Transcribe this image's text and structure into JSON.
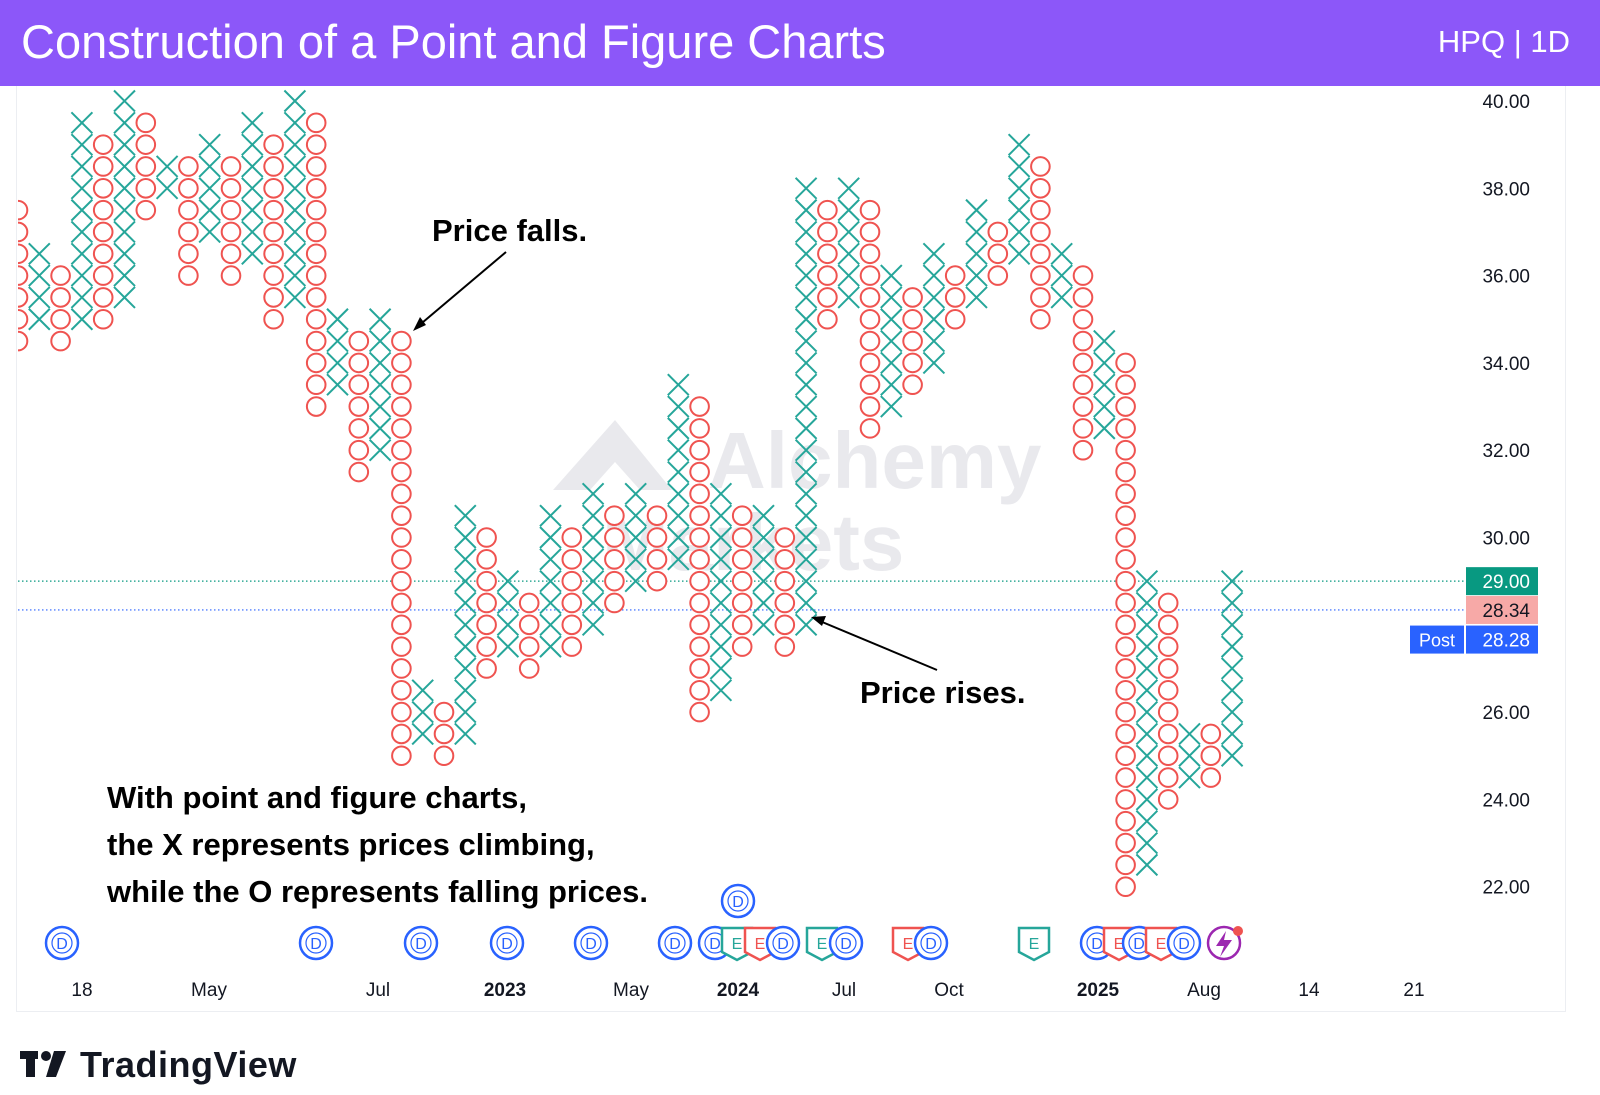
{
  "header": {
    "title": "Construction of a Point and Figure Charts",
    "ticker": "HPQ | 1D"
  },
  "colors": {
    "header_bg": "#8c57f9",
    "x_color": "#26a69a",
    "o_color": "#ef5350",
    "dividend_color": "#2962ff",
    "earnings_red": "#ef5350",
    "earnings_green": "#26a69a",
    "price_green": "#089981",
    "price_red": "#f7a9a7",
    "post_blue": "#2962ff"
  },
  "watermark": {
    "line1": "Alchemy",
    "line2": "Markets"
  },
  "annotations": {
    "price_falls": "Price falls.",
    "price_rises": "Price rises.",
    "explanation": [
      "With point and figure charts,",
      "the X represents prices climbing,",
      "while the O represents falling prices."
    ]
  },
  "price_labels": [
    {
      "value": "29.00",
      "kind": "last"
    },
    {
      "value": "28.34",
      "kind": "close"
    },
    {
      "value": "28.28",
      "kind": "post",
      "tag": "Post"
    }
  ],
  "events_row": [
    "D",
    "D",
    "D",
    "D",
    "D",
    "D",
    "D",
    "E",
    "E",
    "D",
    "E",
    "D",
    "E",
    "D",
    "E",
    "D",
    "E",
    "D",
    "E",
    "D"
  ],
  "event_top": "D",
  "logo": {
    "text": "TradingView"
  },
  "chart_data": {
    "type": "point_and_figure",
    "symbol": "HPQ",
    "interval": "1D",
    "box_size": 0.5,
    "yaxis": {
      "ticks": [
        40,
        38,
        36,
        34,
        32,
        30,
        26,
        24,
        22
      ],
      "tick_labels": [
        "40.00",
        "38.00",
        "36.00",
        "34.00",
        "32.00",
        "30.00",
        "26.00",
        "24.00",
        "22.00"
      ],
      "range": [
        21,
        40.5
      ]
    },
    "xaxis": {
      "tick_labels": [
        "18",
        "May",
        "Jul",
        "2023",
        "May",
        "2024",
        "Jul",
        "Oct",
        "2025",
        "Aug",
        "14",
        "21"
      ],
      "bold": [
        "2023",
        "2024",
        "2025"
      ]
    },
    "columns": [
      {
        "type": "O",
        "low": 34.5,
        "high": 37.5
      },
      {
        "type": "X",
        "low": 35,
        "high": 36.5
      },
      {
        "type": "O",
        "low": 34.5,
        "high": 36
      },
      {
        "type": "X",
        "low": 35,
        "high": 39.5
      },
      {
        "type": "O",
        "low": 35,
        "high": 39
      },
      {
        "type": "X",
        "low": 35.5,
        "high": 40
      },
      {
        "type": "O",
        "low": 37.5,
        "high": 39.5
      },
      {
        "type": "X",
        "low": 38,
        "high": 38.5
      },
      {
        "type": "O",
        "low": 36,
        "high": 38.5
      },
      {
        "type": "X",
        "low": 37,
        "high": 39
      },
      {
        "type": "O",
        "low": 36,
        "high": 38.5
      },
      {
        "type": "X",
        "low": 36.5,
        "high": 39.5
      },
      {
        "type": "O",
        "low": 35,
        "high": 39
      },
      {
        "type": "X",
        "low": 35.5,
        "high": 40
      },
      {
        "type": "O",
        "low": 33,
        "high": 39.5
      },
      {
        "type": "X",
        "low": 33.5,
        "high": 35
      },
      {
        "type": "O",
        "low": 31.5,
        "high": 34.5
      },
      {
        "type": "X",
        "low": 32,
        "high": 35
      },
      {
        "type": "O",
        "low": 25,
        "high": 34.5
      },
      {
        "type": "X",
        "low": 25.5,
        "high": 26.5
      },
      {
        "type": "O",
        "low": 25,
        "high": 26
      },
      {
        "type": "X",
        "low": 25.5,
        "high": 30.5
      },
      {
        "type": "O",
        "low": 27,
        "high": 30
      },
      {
        "type": "X",
        "low": 27.5,
        "high": 29
      },
      {
        "type": "O",
        "low": 27,
        "high": 28.5
      },
      {
        "type": "X",
        "low": 27.5,
        "high": 30.5
      },
      {
        "type": "O",
        "low": 27.5,
        "high": 30
      },
      {
        "type": "X",
        "low": 28,
        "high": 31
      },
      {
        "type": "O",
        "low": 28.5,
        "high": 30.5
      },
      {
        "type": "X",
        "low": 29,
        "high": 31
      },
      {
        "type": "O",
        "low": 29,
        "high": 30.5
      },
      {
        "type": "X",
        "low": 29.5,
        "high": 33.5
      },
      {
        "type": "O",
        "low": 26,
        "high": 33
      },
      {
        "type": "X",
        "low": 26.5,
        "high": 31
      },
      {
        "type": "O",
        "low": 27.5,
        "high": 30.5
      },
      {
        "type": "X",
        "low": 28,
        "high": 30.5
      },
      {
        "type": "O",
        "low": 27.5,
        "high": 30
      },
      {
        "type": "X",
        "low": 28,
        "high": 38
      },
      {
        "type": "O",
        "low": 35,
        "high": 37.5
      },
      {
        "type": "X",
        "low": 35.5,
        "high": 38
      },
      {
        "type": "O",
        "low": 32.5,
        "high": 37.5
      },
      {
        "type": "X",
        "low": 33,
        "high": 36
      },
      {
        "type": "O",
        "low": 33.5,
        "high": 35.5
      },
      {
        "type": "X",
        "low": 34,
        "high": 36.5
      },
      {
        "type": "O",
        "low": 35,
        "high": 36
      },
      {
        "type": "X",
        "low": 35.5,
        "high": 37.5
      },
      {
        "type": "O",
        "low": 36,
        "high": 37
      },
      {
        "type": "X",
        "low": 36.5,
        "high": 39
      },
      {
        "type": "O",
        "low": 35,
        "high": 38.5
      },
      {
        "type": "X",
        "low": 35.5,
        "high": 36.5
      },
      {
        "type": "O",
        "low": 32,
        "high": 36
      },
      {
        "type": "X",
        "low": 32.5,
        "high": 34.5
      },
      {
        "type": "O",
        "low": 22,
        "high": 34
      },
      {
        "type": "X",
        "low": 22.5,
        "high": 29
      },
      {
        "type": "O",
        "low": 24,
        "high": 28.5
      },
      {
        "type": "X",
        "low": 24.5,
        "high": 25.5
      },
      {
        "type": "O",
        "low": 24.5,
        "high": 25.5
      },
      {
        "type": "X",
        "low": 25,
        "high": 29
      }
    ],
    "reference_lines": [
      {
        "value": 29.0,
        "color": "#089981",
        "style": "dotted"
      },
      {
        "value": 28.34,
        "color": "#2962ff",
        "style": "dotted"
      }
    ]
  }
}
